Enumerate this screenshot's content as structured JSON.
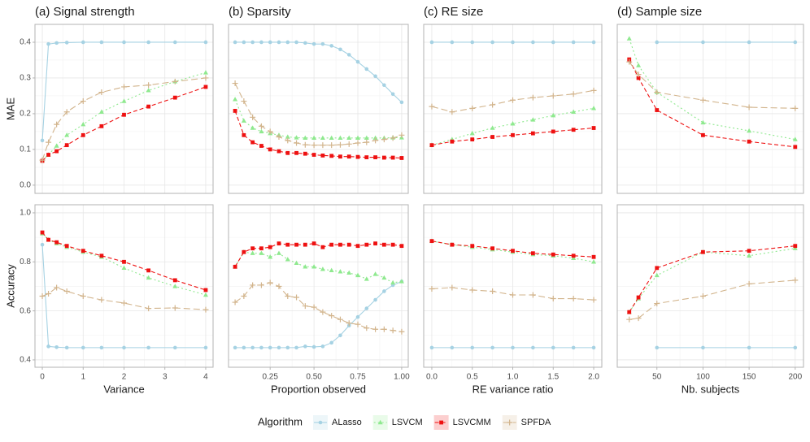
{
  "chart_data": {
    "type": "line",
    "columns": [
      {
        "title": "(a) Signal strength",
        "xlabel": "Variance",
        "x": [
          0,
          0.15,
          0.35,
          0.6,
          1,
          1.45,
          2,
          2.6,
          3.25,
          4
        ],
        "xlim": [
          -0.18,
          4.18
        ],
        "xticks": [
          0,
          1,
          2,
          3,
          4
        ]
      },
      {
        "title": "(b) Sparsity",
        "xlabel": "Proportion observed",
        "x": [
          0.05,
          0.1,
          0.15,
          0.2,
          0.25,
          0.3,
          0.35,
          0.4,
          0.45,
          0.5,
          0.55,
          0.6,
          0.65,
          0.7,
          0.75,
          0.8,
          0.85,
          0.9,
          0.95,
          1.0
        ],
        "xlim": [
          0.0125,
          1.0375
        ],
        "xticks": [
          0.25,
          {
            "value": 0.5,
            "label": "0.50"
          },
          0.75,
          {
            "value": 1,
            "label": "1.00"
          }
        ]
      },
      {
        "title": "(c) RE size",
        "xlabel": "RE variance ratio",
        "x": [
          0,
          0.25,
          0.5,
          0.75,
          1,
          1.25,
          1.5,
          1.75,
          2
        ],
        "xlim": [
          -0.1,
          2.1
        ],
        "xticks": [
          {
            "value": 0,
            "label": "0.0"
          },
          0.5,
          {
            "value": 1,
            "label": "1.0"
          },
          1.5,
          {
            "value": 2,
            "label": "2.0"
          }
        ]
      },
      {
        "title": "(d) Sample size",
        "xlabel": "Nb. subjects",
        "x": [
          20,
          30,
          50,
          100,
          150,
          200
        ],
        "xlim": [
          7,
          209
        ],
        "xticks": [
          50,
          100,
          150,
          200
        ]
      }
    ],
    "rows": [
      {
        "ylabel": "MAE",
        "ylim": [
          -0.023,
          0.45
        ],
        "yticks": [
          {
            "value": 0,
            "label": "0.0"
          },
          0.1,
          0.2,
          0.3,
          0.4
        ],
        "panels": [
          {
            "series": [
              {
                "values": [
                  0.125,
                  0.395,
                  0.398,
                  0.399,
                  0.4,
                  0.4,
                  0.4,
                  0.4,
                  0.4,
                  0.4
                ]
              },
              {
                "values": [
                  0.07,
                  0.085,
                  0.11,
                  0.14,
                  0.17,
                  0.205,
                  0.235,
                  0.265,
                  0.29,
                  0.315
                ]
              },
              {
                "values": [
                  0.068,
                  0.085,
                  0.095,
                  0.112,
                  0.14,
                  0.165,
                  0.197,
                  0.22,
                  0.245,
                  0.275
                ]
              },
              {
                "values": [
                  0.07,
                  0.12,
                  0.17,
                  0.205,
                  0.235,
                  0.26,
                  0.275,
                  0.28,
                  0.29,
                  0.3
                ]
              }
            ]
          },
          {
            "series": [
              {
                "values": [
                  0.4,
                  0.4,
                  0.4,
                  0.4,
                  0.4,
                  0.4,
                  0.4,
                  0.4,
                  0.398,
                  0.395,
                  0.395,
                  0.39,
                  0.38,
                  0.365,
                  0.345,
                  0.325,
                  0.305,
                  0.28,
                  0.255,
                  0.232
                ]
              },
              {
                "values": [
                  0.24,
                  0.18,
                  0.16,
                  0.15,
                  0.145,
                  0.14,
                  0.135,
                  0.133,
                  0.132,
                  0.132,
                  0.132,
                  0.132,
                  0.132,
                  0.132,
                  0.132,
                  0.132,
                  0.132,
                  0.132,
                  0.133,
                  0.133
                ]
              },
              {
                "values": [
                  0.208,
                  0.14,
                  0.12,
                  0.11,
                  0.1,
                  0.095,
                  0.09,
                  0.09,
                  0.088,
                  0.085,
                  0.083,
                  0.082,
                  0.08,
                  0.08,
                  0.079,
                  0.078,
                  0.078,
                  0.077,
                  0.077,
                  0.076
                ]
              },
              {
                "values": [
                  0.285,
                  0.235,
                  0.19,
                  0.165,
                  0.15,
                  0.135,
                  0.125,
                  0.118,
                  0.113,
                  0.112,
                  0.112,
                  0.112,
                  0.113,
                  0.115,
                  0.118,
                  0.12,
                  0.125,
                  0.128,
                  0.132,
                  0.14
                ]
              }
            ]
          },
          {
            "series": [
              {
                "values": [
                  0.4,
                  0.4,
                  0.4,
                  0.4,
                  0.4,
                  0.4,
                  0.4,
                  0.4,
                  0.4
                ]
              },
              {
                "values": [
                  0.112,
                  0.128,
                  0.145,
                  0.16,
                  0.172,
                  0.183,
                  0.195,
                  0.205,
                  0.215
                ]
              },
              {
                "values": [
                  0.112,
                  0.122,
                  0.128,
                  0.135,
                  0.14,
                  0.145,
                  0.15,
                  0.155,
                  0.16
                ]
              },
              {
                "values": [
                  0.22,
                  0.205,
                  0.215,
                  0.225,
                  0.238,
                  0.245,
                  0.25,
                  0.255,
                  0.265
                ]
              }
            ]
          },
          {
            "series": [
              {
                "values": [
                  null,
                  null,
                  0.4,
                  0.4,
                  0.4,
                  0.4
                ]
              },
              {
                "values": [
                  0.41,
                  0.335,
                  0.26,
                  0.175,
                  0.152,
                  0.128
                ]
              },
              {
                "values": [
                  0.352,
                  0.3,
                  0.21,
                  0.14,
                  0.122,
                  0.107
                ]
              },
              {
                "values": [
                  0.345,
                  0.31,
                  0.26,
                  0.238,
                  0.218,
                  0.215
                ]
              }
            ]
          }
        ]
      },
      {
        "ylabel": "Accuracy",
        "ylim": [
          0.37,
          1.033
        ],
        "yticks": [
          0.4,
          0.6,
          0.8,
          {
            "value": 1,
            "label": "1.0"
          }
        ],
        "panels": [
          {
            "series": [
              {
                "values": [
                  0.87,
                  0.455,
                  0.452,
                  0.45,
                  0.45,
                  0.45,
                  0.45,
                  0.45,
                  0.45,
                  0.45
                ]
              },
              {
                "values": [
                  0.915,
                  0.89,
                  0.875,
                  0.86,
                  0.84,
                  0.82,
                  0.775,
                  0.735,
                  0.7,
                  0.665
                ]
              },
              {
                "values": [
                  0.92,
                  0.89,
                  0.88,
                  0.865,
                  0.845,
                  0.825,
                  0.8,
                  0.765,
                  0.725,
                  0.685
                ]
              },
              {
                "values": [
                  0.66,
                  0.67,
                  0.695,
                  0.68,
                  0.66,
                  0.645,
                  0.632,
                  0.61,
                  0.612,
                  0.605
                ]
              }
            ]
          },
          {
            "series": [
              {
                "values": [
                  0.45,
                  0.45,
                  0.45,
                  0.45,
                  0.45,
                  0.45,
                  0.45,
                  0.45,
                  0.455,
                  0.453,
                  0.455,
                  0.47,
                  0.5,
                  0.54,
                  0.575,
                  0.61,
                  0.645,
                  0.68,
                  0.705,
                  0.72
                ]
              },
              {
                "values": [
                  0.78,
                  0.84,
                  0.835,
                  0.835,
                  0.82,
                  0.835,
                  0.81,
                  0.795,
                  0.78,
                  0.78,
                  0.77,
                  0.765,
                  0.76,
                  0.755,
                  0.745,
                  0.73,
                  0.75,
                  0.735,
                  0.715,
                  0.72
                ]
              },
              {
                "values": [
                  0.78,
                  0.84,
                  0.855,
                  0.855,
                  0.86,
                  0.875,
                  0.87,
                  0.87,
                  0.87,
                  0.875,
                  0.86,
                  0.87,
                  0.87,
                  0.87,
                  0.865,
                  0.87,
                  0.875,
                  0.87,
                  0.87,
                  0.865
                ]
              },
              {
                "values": [
                  0.635,
                  0.66,
                  0.705,
                  0.705,
                  0.715,
                  0.7,
                  0.66,
                  0.655,
                  0.62,
                  0.615,
                  0.595,
                  0.58,
                  0.565,
                  0.55,
                  0.545,
                  0.53,
                  0.525,
                  0.525,
                  0.52,
                  0.515
                ]
              }
            ]
          },
          {
            "series": [
              {
                "values": [
                  0.45,
                  0.45,
                  0.45,
                  0.45,
                  0.45,
                  0.45,
                  0.45,
                  0.45,
                  0.45
                ]
              },
              {
                "values": [
                  0.885,
                  0.87,
                  0.86,
                  0.85,
                  0.84,
                  0.83,
                  0.825,
                  0.815,
                  0.8
                ]
              },
              {
                "values": [
                  0.885,
                  0.87,
                  0.865,
                  0.855,
                  0.845,
                  0.835,
                  0.83,
                  0.825,
                  0.82
                ]
              },
              {
                "values": [
                  0.69,
                  0.695,
                  0.685,
                  0.68,
                  0.665,
                  0.665,
                  0.65,
                  0.65,
                  0.645
                ]
              }
            ]
          },
          {
            "series": [
              {
                "values": [
                  null,
                  null,
                  0.45,
                  0.45,
                  0.45,
                  0.45
                ]
              },
              {
                "values": [
                  0.595,
                  0.65,
                  0.745,
                  0.84,
                  0.825,
                  0.855
                ]
              },
              {
                "values": [
                  0.595,
                  0.655,
                  0.775,
                  0.84,
                  0.845,
                  0.865
                ]
              },
              {
                "values": [
                  0.565,
                  0.57,
                  0.63,
                  0.66,
                  0.71,
                  0.725
                ]
              }
            ]
          }
        ]
      }
    ],
    "grid": true,
    "legend": {
      "title": "Algorithm",
      "position": "bottom",
      "series": [
        {
          "name": "ALasso",
          "color": "#a6d2e3",
          "dash": "solid",
          "shape": "circle"
        },
        {
          "name": "LSVCM",
          "color": "#8fe98f",
          "dash": "dotted",
          "shape": "triangle"
        },
        {
          "name": "LSVCMM",
          "color": "#ee1111",
          "dash": "dashed",
          "shape": "square"
        },
        {
          "name": "SPFDA",
          "color": "#d2b48c",
          "dash": "longdash",
          "shape": "plus"
        }
      ]
    }
  }
}
